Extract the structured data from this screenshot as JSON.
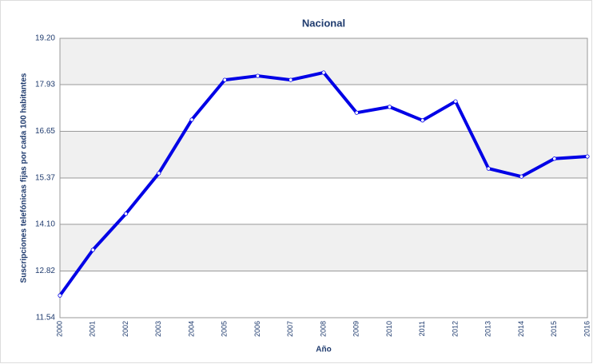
{
  "chart_data": {
    "type": "line",
    "title": "Nacional",
    "x_label": "Año",
    "y_label": "Suscripciones telefónicas fijas por cada 100 habitantes",
    "categories": [
      "2000",
      "2001",
      "2002",
      "2003",
      "2004",
      "2005",
      "2006",
      "2007",
      "2008",
      "2009",
      "2010",
      "2011",
      "2012",
      "2013",
      "2014",
      "2015",
      "2016"
    ],
    "series": [
      {
        "name": "Nacional",
        "color": "#0000e6",
        "values": [
          12.15,
          13.4,
          14.39,
          15.5,
          16.97,
          18.06,
          18.17,
          18.06,
          18.26,
          17.16,
          17.32,
          16.95,
          17.47,
          15.63,
          15.41,
          15.9,
          15.96
        ]
      }
    ],
    "ylim": [
      11.54,
      19.2
    ],
    "yticks": [
      11.54,
      12.82,
      {
        "value": 14.1,
        "label": "14.10"
      },
      15.37,
      16.65,
      17.93,
      {
        "value": 19.2,
        "label": "19.20"
      }
    ],
    "grid": true
  }
}
